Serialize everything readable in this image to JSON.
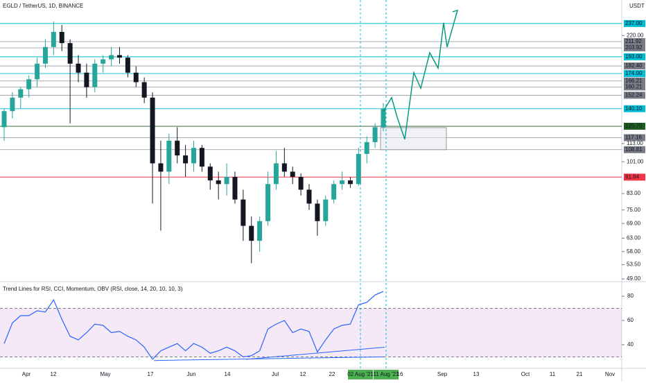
{
  "chart_data": [
    {
      "type": "candlestick",
      "title": "EGLD / TetherUS, 1D, BINANCE",
      "unit": "USDT",
      "log_scale": true,
      "ylim": [
        48.4,
        274
      ],
      "up_color": "#26a69a",
      "down_color": "#131722",
      "candles": [
        {
          "open": 125,
          "high": 140,
          "low": 115,
          "close": 138
        },
        {
          "open": 138,
          "high": 155,
          "low": 132,
          "close": 150
        },
        {
          "open": 150,
          "high": 160,
          "low": 140,
          "close": 158
        },
        {
          "open": 158,
          "high": 172,
          "low": 150,
          "close": 168
        },
        {
          "open": 168,
          "high": 192,
          "low": 160,
          "close": 185
        },
        {
          "open": 185,
          "high": 215,
          "low": 180,
          "close": 205
        },
        {
          "open": 205,
          "high": 240,
          "low": 195,
          "close": 225
        },
        {
          "open": 225,
          "high": 235,
          "low": 200,
          "close": 210
        },
        {
          "open": 210,
          "high": 215,
          "low": 128,
          "close": 185
        },
        {
          "open": 185,
          "high": 195,
          "low": 165,
          "close": 175
        },
        {
          "open": 175,
          "high": 185,
          "low": 150,
          "close": 160
        },
        {
          "open": 160,
          "high": 190,
          "low": 155,
          "close": 185
        },
        {
          "open": 185,
          "high": 195,
          "low": 175,
          "close": 190
        },
        {
          "open": 190,
          "high": 205,
          "low": 182,
          "close": 195
        },
        {
          "open": 195,
          "high": 205,
          "low": 185,
          "close": 192
        },
        {
          "open": 192,
          "high": 195,
          "low": 170,
          "close": 175
        },
        {
          "open": 175,
          "high": 182,
          "low": 160,
          "close": 165
        },
        {
          "open": 165,
          "high": 170,
          "low": 145,
          "close": 150
        },
        {
          "open": 150,
          "high": 155,
          "low": 78,
          "close": 100
        },
        {
          "open": 100,
          "high": 115,
          "low": 66,
          "close": 95
        },
        {
          "open": 95,
          "high": 120,
          "low": 88,
          "close": 115
        },
        {
          "open": 115,
          "high": 125,
          "low": 100,
          "close": 105
        },
        {
          "open": 105,
          "high": 112,
          "low": 92,
          "close": 100
        },
        {
          "open": 100,
          "high": 115,
          "low": 95,
          "close": 110
        },
        {
          "open": 110,
          "high": 112,
          "low": 95,
          "close": 98
        },
        {
          "open": 98,
          "high": 100,
          "low": 85,
          "close": 90
        },
        {
          "open": 90,
          "high": 95,
          "low": 80,
          "close": 88
        },
        {
          "open": 88,
          "high": 100,
          "low": 82,
          "close": 92
        },
        {
          "open": 92,
          "high": 95,
          "low": 78,
          "close": 80
        },
        {
          "open": 80,
          "high": 85,
          "low": 62,
          "close": 68
        },
        {
          "open": 68,
          "high": 72,
          "low": 54,
          "close": 62
        },
        {
          "open": 62,
          "high": 72,
          "low": 58,
          "close": 70
        },
        {
          "open": 70,
          "high": 95,
          "low": 68,
          "close": 88
        },
        {
          "open": 88,
          "high": 108,
          "low": 85,
          "close": 100
        },
        {
          "open": 100,
          "high": 110,
          "low": 92,
          "close": 95
        },
        {
          "open": 95,
          "high": 98,
          "low": 88,
          "close": 92
        },
        {
          "open": 92,
          "high": 94,
          "low": 82,
          "close": 85
        },
        {
          "open": 85,
          "high": 88,
          "low": 75,
          "close": 78
        },
        {
          "open": 78,
          "high": 80,
          "low": 64,
          "close": 70
        },
        {
          "open": 70,
          "high": 82,
          "low": 68,
          "close": 80
        },
        {
          "open": 80,
          "high": 90,
          "low": 78,
          "close": 88
        },
        {
          "open": 88,
          "high": 95,
          "low": 85,
          "close": 90
        },
        {
          "open": 90,
          "high": 92,
          "low": 86,
          "close": 88
        },
        {
          "open": 88,
          "high": 110,
          "low": 87,
          "close": 106
        },
        {
          "open": 106,
          "high": 118,
          "low": 100,
          "close": 114
        },
        {
          "open": 114,
          "high": 128,
          "low": 110,
          "close": 125
        },
        {
          "open": 125,
          "high": 145,
          "low": 122,
          "close": 140
        }
      ],
      "projection": {
        "color": "#089981",
        "values": [
          138,
          150,
          133,
          116,
          175,
          159,
          198,
          180,
          238,
          205,
          257
        ]
      },
      "box": [
        108.8,
        124.7
      ],
      "levels": [
        {
          "value": 237,
          "label": "237.00",
          "color": "#00bcd4"
        },
        {
          "value": 211.92,
          "label": "211.92",
          "color": "#787b86"
        },
        {
          "value": 203.92,
          "label": "203.92",
          "color": "#787b86"
        },
        {
          "value": 193,
          "label": "193.00",
          "color": "#00bcd4"
        },
        {
          "value": 182.4,
          "label": "182.40",
          "color": "#787b86"
        },
        {
          "value": 174,
          "label": "174.00",
          "color": "#00bcd4"
        },
        {
          "value": 166.21,
          "label": "166.21",
          "color": "#787b86"
        },
        {
          "value": 160.21,
          "label": "160.21",
          "color": "#787b86"
        },
        {
          "value": 152.24,
          "label": "152.24",
          "color": "#787b86"
        },
        {
          "value": 140.1,
          "label": "140.10",
          "color": "#00bcd4"
        },
        {
          "value": 125.7,
          "label": "125.70",
          "color": "#1b5e20"
        },
        {
          "value": 117.16,
          "label": "117.16",
          "color": "#787b86"
        },
        {
          "value": 108.81,
          "label": "108.81",
          "color": "#787b86"
        },
        {
          "value": 91.84,
          "label": "91.84",
          "color": "#f23645"
        }
      ],
      "yticks": [
        {
          "value": 220,
          "label": "220.00"
        },
        {
          "value": 113,
          "label": "113.00"
        },
        {
          "value": 101,
          "label": "101.00"
        },
        {
          "value": 83,
          "label": "83.00"
        },
        {
          "value": 75,
          "label": "75.00"
        },
        {
          "value": 69,
          "label": "69.00"
        },
        {
          "value": 63,
          "label": "63.00"
        },
        {
          "value": 58,
          "label": "58.00"
        },
        {
          "value": 53.5,
          "label": "53.50"
        },
        {
          "value": 49,
          "label": "49.00"
        }
      ],
      "xticks": [
        "Apr",
        "12",
        "May",
        "17",
        "Jun",
        "14",
        "Jul",
        "12",
        "22",
        "02 Aug '21",
        "11 Aug '21",
        "16",
        "Sep",
        "13",
        "Oct",
        "11",
        "21",
        "Nov"
      ]
    },
    {
      "type": "line",
      "title": "Trend Lines for RSI, CCI, Momentum, OBV (RSI, close, 14, 20, 10, 10, 3)",
      "color": "#2962ff",
      "ylim": [
        21.1,
        90.9
      ],
      "band": [
        30,
        70
      ],
      "yticks": [
        40,
        60,
        80
      ],
      "values": [
        41,
        58,
        64,
        64,
        68,
        67,
        77,
        61,
        47,
        44,
        50,
        57,
        56,
        50,
        51,
        47,
        44,
        38,
        28,
        35,
        38,
        41,
        35,
        41,
        38,
        33,
        35,
        38,
        35,
        30,
        31,
        35,
        53,
        57,
        60,
        50,
        53,
        51,
        34,
        44,
        53,
        56,
        57,
        73,
        75,
        81,
        84
      ],
      "trend_lines": [
        {
          "from": 27,
          "to": 30
        },
        {
          "from": 28,
          "to": 38
        }
      ]
    }
  ]
}
